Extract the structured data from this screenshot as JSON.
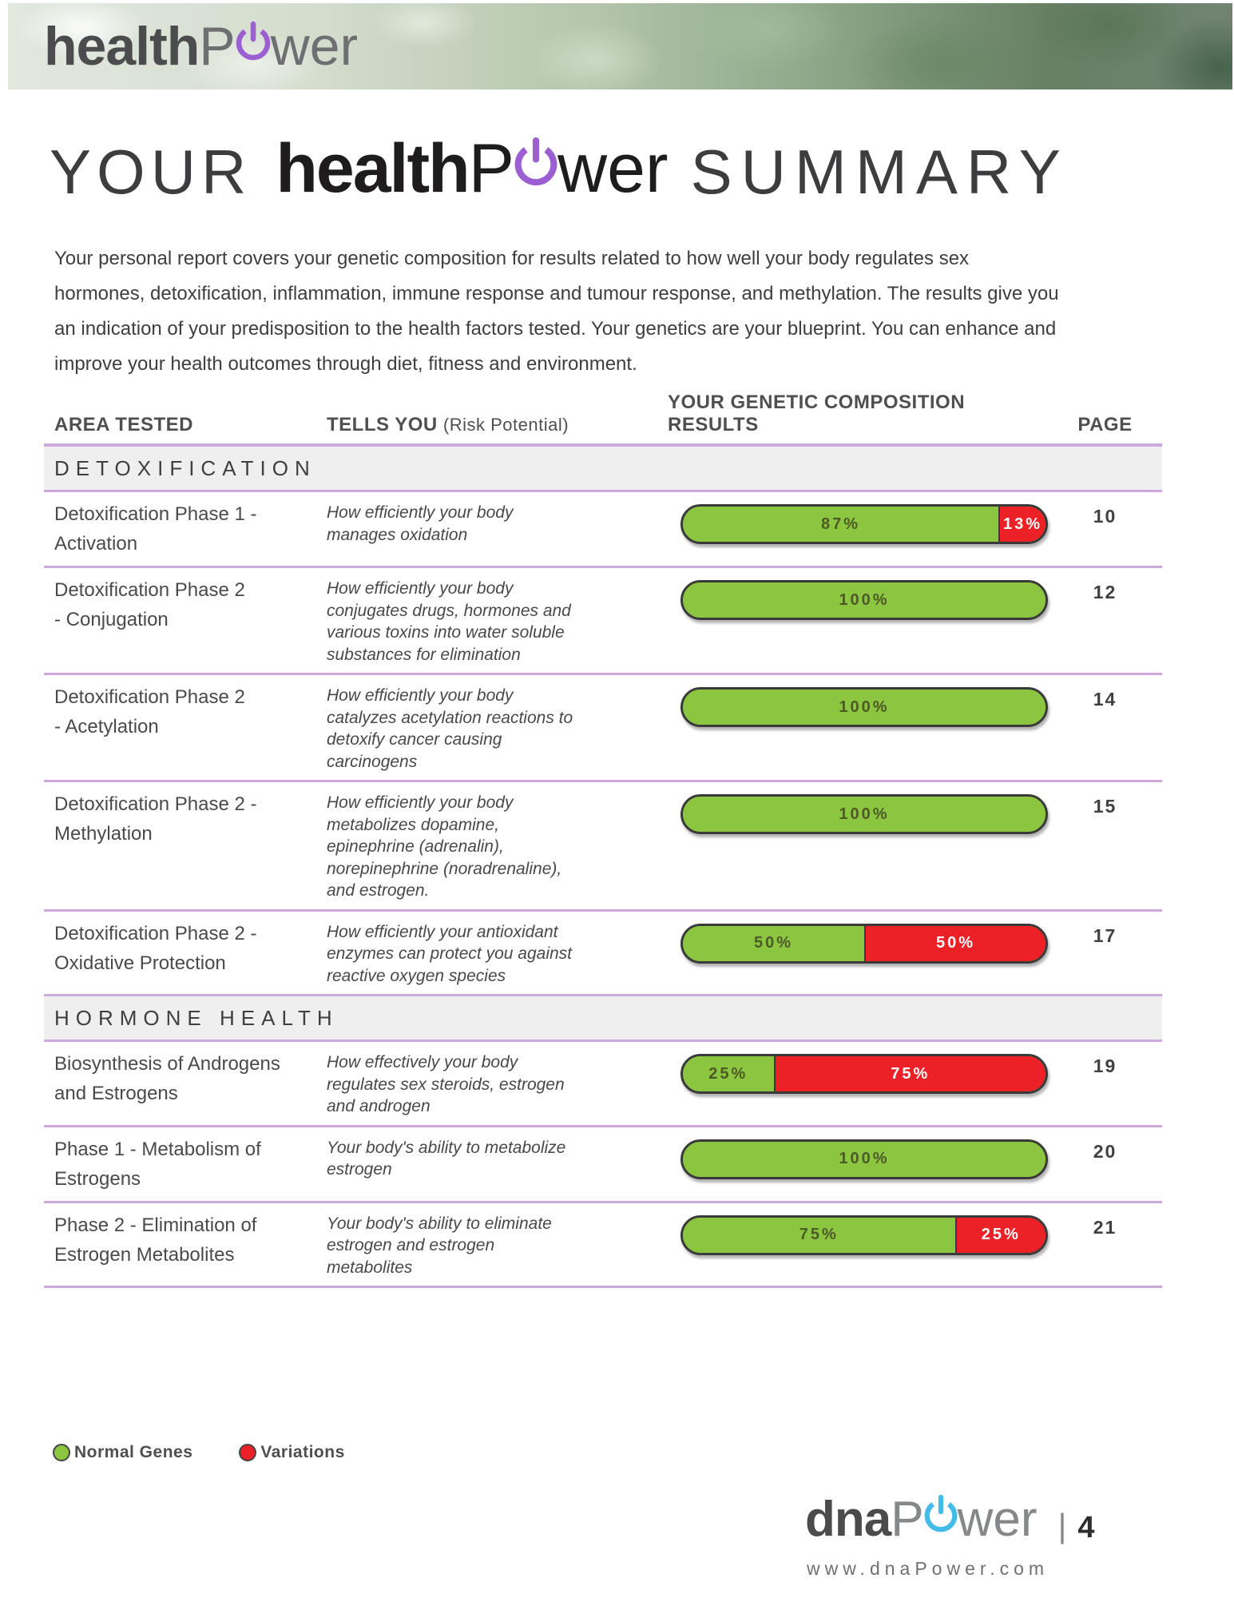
{
  "banner": {
    "logo": {
      "bold": "health",
      "p": "P",
      "suffix": "wer"
    }
  },
  "title": {
    "pre": "YOUR",
    "bold": "health",
    "p": "P",
    "suffix": "wer",
    "post": "SUMMARY"
  },
  "intro_lines": [
    "Your personal report covers your genetic composition for results related to how well your body regulates sex",
    "hormones, detoxification, inflammation, immune response and tumour response, and methylation. The results give you",
    "an indication of your predisposition to the health factors tested. Your genetics are your blueprint. You can enhance and",
    "improve your health outcomes through diet, fitness and environment."
  ],
  "table": {
    "headers": {
      "area": "AREA TESTED",
      "tells": "TELLS YOU",
      "tells_note": "(Risk Potential)",
      "results": "YOUR GENETIC COMPOSITION RESULTS",
      "page": "PAGE"
    },
    "sections": [
      {
        "label": "DETOXIFICATION",
        "rows": [
          {
            "name_lines": [
              "Detoxification Phase 1 -",
              "Activation"
            ],
            "desc_lines": [
              "How efficiently your body",
              "manages oxidation"
            ],
            "segments": [
              {
                "pct": 87,
                "label": "87%",
                "type": "normal"
              },
              {
                "pct": 13,
                "label": "13%",
                "type": "variation"
              }
            ],
            "page": "10"
          },
          {
            "name_lines": [
              "Detoxification Phase 2",
              "- Conjugation"
            ],
            "desc_lines": [
              "How efficiently your body",
              "conjugates drugs, hormones and",
              "various toxins into water soluble",
              "substances for elimination"
            ],
            "segments": [
              {
                "pct": 100,
                "label": "100%",
                "type": "normal"
              }
            ],
            "page": "12"
          },
          {
            "name_lines": [
              "Detoxification Phase 2",
              "- Acetylation"
            ],
            "desc_lines": [
              "How efficiently your body",
              "catalyzes acetylation reactions to",
              "detoxify cancer causing",
              "carcinogens"
            ],
            "segments": [
              {
                "pct": 100,
                "label": "100%",
                "type": "normal"
              }
            ],
            "page": "14"
          },
          {
            "name_lines": [
              "Detoxification Phase 2 -",
              "Methylation"
            ],
            "desc_lines": [
              "How efficiently your body",
              "metabolizes dopamine,",
              "epinephrine (adrenalin),",
              "norepinephrine (noradrenaline),",
              "and estrogen."
            ],
            "segments": [
              {
                "pct": 100,
                "label": "100%",
                "type": "normal"
              }
            ],
            "page": "15"
          },
          {
            "name_lines": [
              "Detoxification Phase 2 -",
              "Oxidative Protection"
            ],
            "desc_lines": [
              "How efficiently your antioxidant",
              "enzymes can protect you against",
              "reactive oxygen species"
            ],
            "segments": [
              {
                "pct": 50,
                "label": "50%",
                "type": "normal"
              },
              {
                "pct": 50,
                "label": "50%",
                "type": "variation"
              }
            ],
            "page": "17"
          }
        ]
      },
      {
        "label": "HORMONE HEALTH",
        "rows": [
          {
            "name_lines": [
              "Biosynthesis of Androgens",
              "and Estrogens"
            ],
            "desc_lines": [
              "How effectively your body",
              "regulates sex steroids, estrogen",
              "and androgen"
            ],
            "segments": [
              {
                "pct": 25,
                "label": "25%",
                "type": "normal"
              },
              {
                "pct": 75,
                "label": "75%",
                "type": "variation"
              }
            ],
            "page": "19"
          },
          {
            "name_lines": [
              "Phase 1 - Metabolism of",
              "Estrogens"
            ],
            "desc_lines": [
              "Your body's ability to metabolize",
              "estrogen"
            ],
            "segments": [
              {
                "pct": 100,
                "label": "100%",
                "type": "normal"
              }
            ],
            "page": "20"
          },
          {
            "name_lines": [
              "Phase 2 - Elimination of",
              "Estrogen Metabolites"
            ],
            "desc_lines": [
              "Your body's ability to eliminate",
              "estrogen and estrogen",
              "metabolites"
            ],
            "segments": [
              {
                "pct": 75,
                "label": "75%",
                "type": "normal"
              },
              {
                "pct": 25,
                "label": "25%",
                "type": "variation"
              }
            ],
            "page": "21"
          }
        ]
      }
    ]
  },
  "legend": {
    "items": [
      {
        "label": "Normal Genes",
        "type": "normal"
      },
      {
        "label": "Variations",
        "type": "variation"
      }
    ]
  },
  "footer": {
    "logo": {
      "bold": "dna",
      "p": "P",
      "suffix": "wer"
    },
    "divider": "|",
    "page_number": "4",
    "website": "www.dnaPower.com"
  },
  "colors": {
    "normal_green": "#8CC640",
    "variation_red": "#EC2127",
    "row_divider_purple": "#CDA9E0",
    "section_band_gray": "#EFEFEF",
    "power_icon_purple": "#9C5FD1",
    "power_icon_blue": "#44BCE9"
  }
}
